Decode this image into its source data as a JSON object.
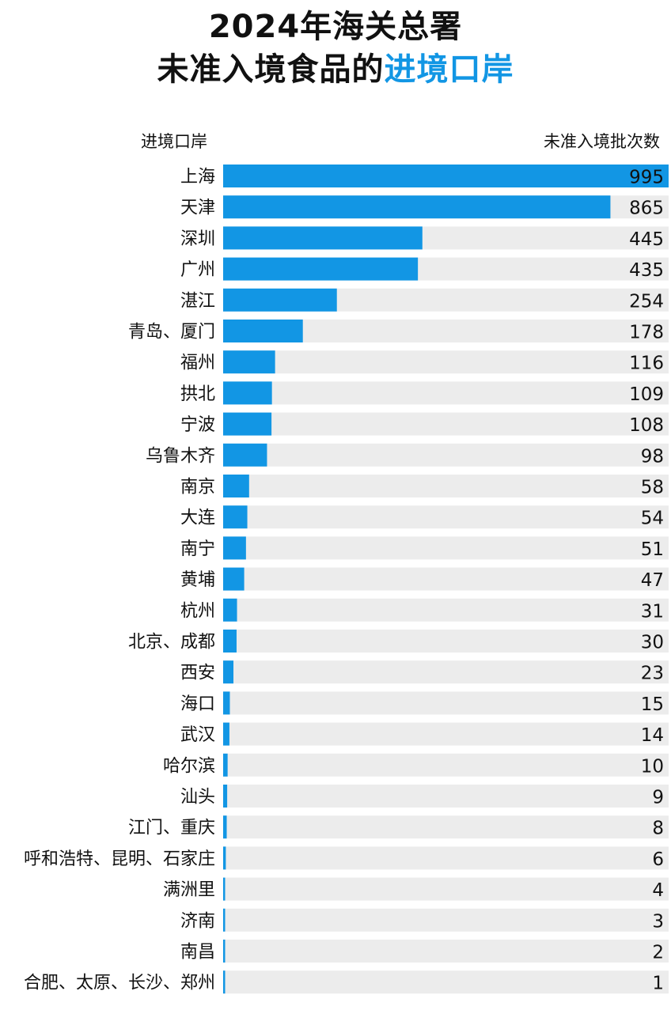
{
  "title": {
    "line1": "2024年海关总署",
    "line2_prefix": "未准入境食品的",
    "line2_highlight": "进境口岸"
  },
  "headers": {
    "left": "进境口岸",
    "right": "未准入境批次数"
  },
  "colors": {
    "bar": "#1296e4",
    "track": "#ececec",
    "highlight": "#1296e4"
  },
  "chart_data": {
    "type": "bar",
    "orientation": "horizontal",
    "categories": [
      "上海",
      "天津",
      "深圳",
      "广州",
      "湛江",
      "青岛、厦门",
      "福州",
      "拱北",
      "宁波",
      "乌鲁木齐",
      "南京",
      "大连",
      "南宁",
      "黄埔",
      "杭州",
      "北京、成都",
      "西安",
      "海口",
      "武汉",
      "哈尔滨",
      "汕头",
      "江门、重庆",
      "呼和浩特、昆明、石家庄",
      "满洲里",
      "济南",
      "南昌",
      "合肥、太原、长沙、郑州"
    ],
    "values": [
      995,
      865,
      445,
      435,
      254,
      178,
      116,
      109,
      108,
      98,
      58,
      54,
      51,
      47,
      31,
      30,
      23,
      15,
      14,
      10,
      9,
      8,
      6,
      4,
      3,
      2,
      1
    ],
    "xlim": [
      0,
      995
    ],
    "grid": false,
    "legend": "none"
  }
}
